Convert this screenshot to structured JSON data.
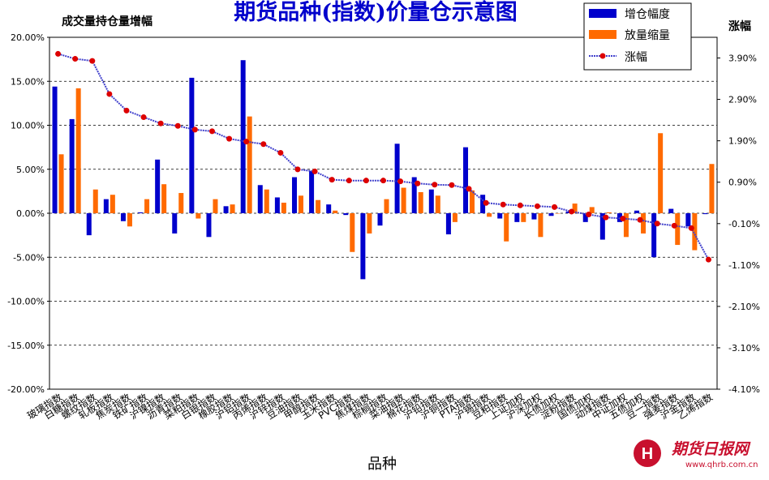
{
  "chart_data": {
    "type": "bar+line",
    "title": "期货品种(指数)价量仓示意图",
    "left_axis_label": "成交量持仓量增幅",
    "right_axis_label": "涨幅",
    "xlabel": "品种",
    "left_ylim": [
      -20,
      20
    ],
    "left_ticks": [
      "20.00%",
      "15.00%",
      "10.00%",
      "5.00%",
      "0.00%",
      "-5.00%",
      "-10.00%",
      "-15.00%",
      "-20.00%"
    ],
    "right_ylim": [
      -4.1,
      4.4
    ],
    "right_ticks": [
      "3.90%",
      "2.90%",
      "1.90%",
      "0.90%",
      "-0.10%",
      "-1.10%",
      "-2.10%",
      "-3.10%",
      "-4.10%"
    ],
    "grid": "horizontal dashed",
    "legend_position": "top-right",
    "categories": [
      "玻璃指数",
      "白糖指数",
      "螺纹指数",
      "轧板指数",
      "焦炭指数",
      "铁矿指数",
      "沪镍指数",
      "沥青指数",
      "菜粕指数",
      "白银指数",
      "橡胶指数",
      "沪铝指数",
      "丙烯指数",
      "沪锌指数",
      "豆油指数",
      "甲醇指数",
      "玉米指数",
      "PVC指数",
      "焦煤指数",
      "棕榈指数",
      "菜油指数",
      "棉花指数",
      "沪铅指数",
      "沪铜指数",
      "PTA指数",
      "沪锡指数",
      "豆粕指数",
      "上证加权",
      "沪深加权",
      "长债加权",
      "淀粉指数",
      "国债加权",
      "动煤指数",
      "中证加权",
      "五债加权",
      "豆一指数",
      "强麦指数",
      "沪金指数",
      "乙烯指数"
    ],
    "series": [
      {
        "name": "增仓幅度",
        "color": "#0000cc",
        "axis": "left",
        "values": [
          14.4,
          10.7,
          -2.5,
          1.6,
          -0.9,
          0.1,
          6.1,
          -2.3,
          15.4,
          -2.7,
          0.8,
          17.4,
          3.2,
          1.8,
          4.1,
          4.8,
          1.0,
          -0.2,
          -7.5,
          -1.4,
          7.9,
          4.1,
          2.7,
          -2.4,
          7.5,
          2.1,
          -0.6,
          -1.0,
          -0.7,
          -0.3,
          0.2,
          -1.0,
          -3.0,
          -1.0,
          0.3,
          -5.0,
          0.5,
          -1.5,
          -0.1
        ]
      },
      {
        "name": "放量缩量",
        "color": "#ff6a00",
        "axis": "left",
        "values": [
          6.7,
          14.2,
          2.7,
          2.1,
          -1.5,
          1.6,
          3.3,
          2.3,
          -0.6,
          1.6,
          1.0,
          11.0,
          2.7,
          1.2,
          2.0,
          1.5,
          0.3,
          -4.4,
          -2.3,
          1.6,
          2.9,
          2.4,
          2.0,
          -1.0,
          2.6,
          -0.4,
          -3.2,
          -1.0,
          -2.7,
          0.0,
          1.1,
          0.7,
          0.1,
          -2.7,
          -2.3,
          9.1,
          -3.6,
          -4.2,
          5.6
        ]
      },
      {
        "name": "涨幅",
        "color": "#4040cc",
        "marker_color": "#dd0000",
        "axis": "right",
        "values": [
          4.0,
          3.88,
          3.83,
          3.03,
          2.63,
          2.47,
          2.32,
          2.26,
          2.17,
          2.13,
          1.95,
          1.88,
          1.82,
          1.61,
          1.21,
          1.16,
          0.96,
          0.94,
          0.94,
          0.94,
          0.92,
          0.87,
          0.84,
          0.83,
          0.74,
          0.4,
          0.36,
          0.34,
          0.32,
          0.3,
          0.19,
          0.12,
          0.05,
          0.02,
          -0.01,
          -0.1,
          -0.15,
          -0.21,
          -0.97
        ]
      }
    ]
  },
  "logo": {
    "text": "期货日报网",
    "url": "www.qhrb.com.cn"
  }
}
